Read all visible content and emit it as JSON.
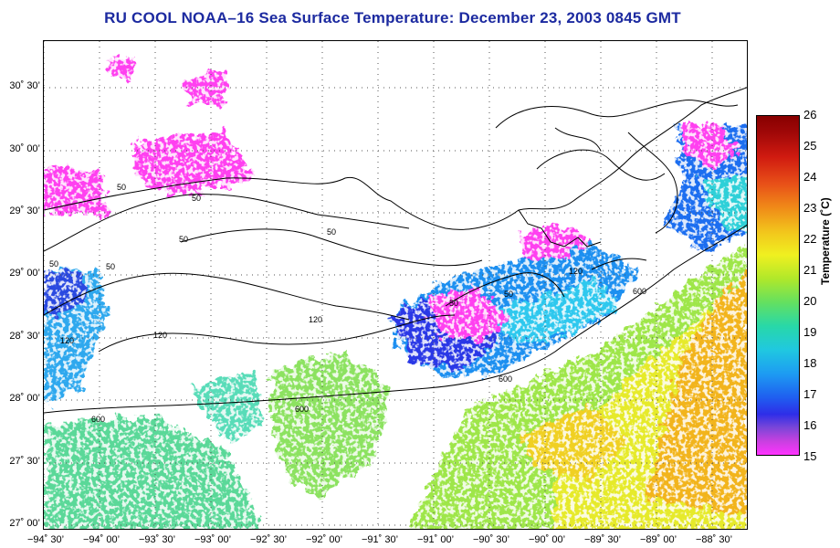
{
  "title": "RU COOL  NOAA–16  Sea Surface Temperature:  December 23, 2003 0845 GMT",
  "lat_labels": [
    "30˚ 30’",
    "30˚ 00’",
    "29˚ 30’",
    "29˚ 00’",
    "28˚ 30’",
    "28˚ 00’",
    "27˚ 30’",
    "27˚ 00’"
  ],
  "lon_labels": [
    "−94˚ 30’",
    "−94˚ 00’",
    "−93˚ 30’",
    "−93˚ 00’",
    "−92˚ 30’",
    "−92˚ 00’",
    "−91˚ 30’",
    "−91˚ 00’",
    "−90˚ 30’",
    "−90˚ 00’",
    "−89˚ 30’",
    "−89˚ 00’",
    "−88˚ 30’"
  ],
  "colorbar": {
    "label": "Temperature (˚C)",
    "ticks": [
      "26",
      "25",
      "24",
      "23",
      "22",
      "21",
      "20",
      "19",
      "18",
      "17",
      "16",
      "15"
    ],
    "min": 15,
    "max": 26
  },
  "contour_labels": {
    "c50": "50",
    "c120": "120",
    "c600": "600"
  },
  "colors": {
    "title": "#1c2aa0",
    "land": "#ffffff",
    "coastline": "#000000"
  }
}
